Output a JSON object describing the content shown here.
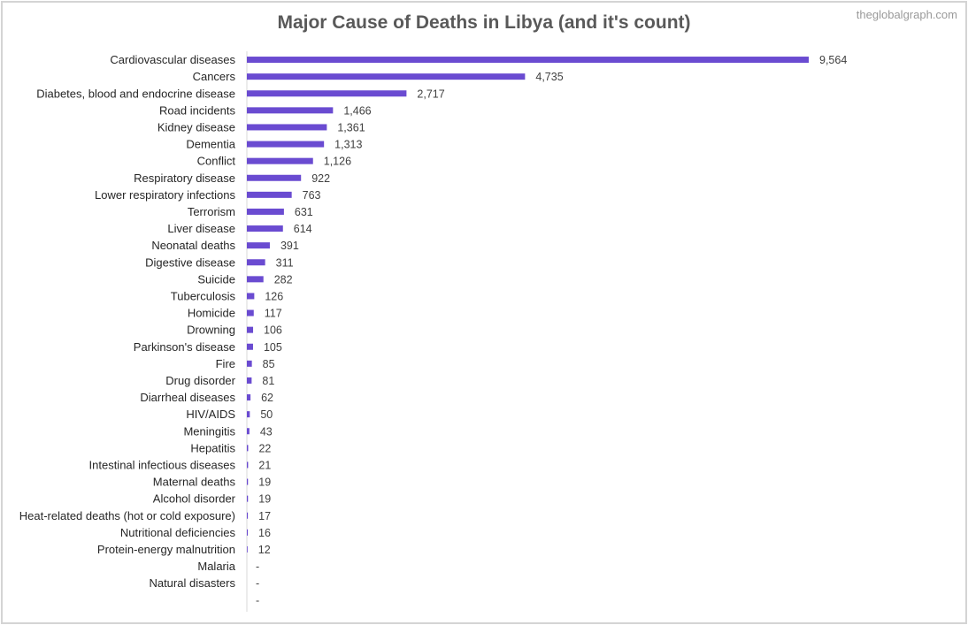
{
  "chart_data": {
    "type": "bar",
    "orientation": "horizontal",
    "title": "Major Cause of Deaths in Libya (and it's count)",
    "watermark": "theglobalgraph.com",
    "xlabel": "",
    "ylabel": "",
    "grid": false,
    "legend": "none",
    "bar_color": "#6a4bd1",
    "xlim": [
      0,
      10000
    ],
    "categories": [
      "Cardiovascular diseases",
      "Cancers",
      "Diabetes, blood and endocrine disease",
      "Road incidents",
      "Kidney disease",
      "Dementia",
      "Conflict",
      "Respiratory disease",
      "Lower respiratory infections",
      "Terrorism",
      "Liver disease",
      "Neonatal deaths",
      "Digestive disease",
      "Suicide",
      "Tuberculosis",
      "Homicide",
      "Drowning",
      "Parkinson's disease",
      "Fire",
      "Drug disorder",
      "Diarrheal diseases",
      "HIV/AIDS",
      "Meningitis",
      "Hepatitis",
      "Intestinal infectious diseases",
      "Maternal deaths",
      "Alcohol disorder",
      "Heat-related deaths (hot or cold exposure)",
      "Nutritional deficiencies",
      "Protein-energy malnutrition",
      "Malaria",
      "Natural disasters",
      ""
    ],
    "values": [
      9564,
      4735,
      2717,
      1466,
      1361,
      1313,
      1126,
      922,
      763,
      631,
      614,
      391,
      311,
      282,
      126,
      117,
      106,
      105,
      85,
      81,
      62,
      50,
      43,
      22,
      21,
      19,
      19,
      17,
      16,
      12,
      0,
      0,
      0
    ],
    "value_labels": [
      "9,564",
      "4,735",
      "2,717",
      "1,466",
      "1,361",
      "1,313",
      "1,126",
      "922",
      "763",
      "631",
      "614",
      "391",
      "311",
      "282",
      "126",
      "117",
      "106",
      "105",
      "85",
      "81",
      "62",
      "50",
      "43",
      "22",
      "21",
      "19",
      "19",
      "17",
      "16",
      "12",
      "-",
      "-",
      "-"
    ]
  }
}
